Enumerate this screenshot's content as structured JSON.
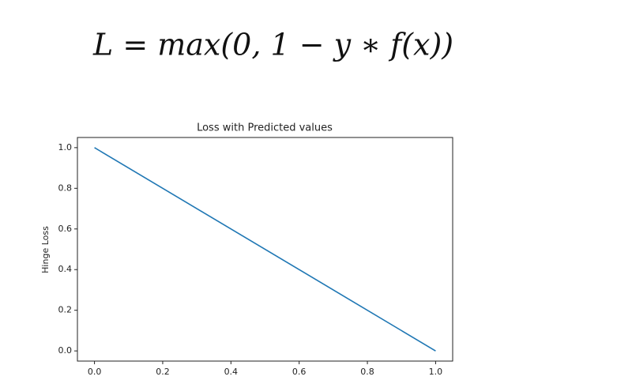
{
  "formula": "L = max(0, 1 − y ∗ f(x))",
  "chart_data": {
    "type": "line",
    "title": "Loss with Predicted values",
    "y_label": "Hinge Loss",
    "x": [
      0,
      1
    ],
    "series": [
      {
        "name": "Hinge Loss",
        "color": "#1f77b4",
        "values": [
          1,
          0
        ]
      }
    ],
    "xlim": [
      -0.05,
      1.05
    ],
    "ylim": [
      -0.05,
      1.05
    ],
    "xticks": [
      {
        "value": 0,
        "label": "0.0"
      },
      {
        "value": 0.2,
        "label": "0.2"
      },
      {
        "value": 0.4,
        "label": "0.4"
      },
      {
        "value": 0.6,
        "label": "0.6"
      },
      {
        "value": 0.8,
        "label": "0.8"
      },
      {
        "value": 1,
        "label": "1.0"
      }
    ],
    "yticks": [
      {
        "value": 0,
        "label": "0.0"
      },
      {
        "value": 0.2,
        "label": "0.2"
      },
      {
        "value": 0.4,
        "label": "0.4"
      },
      {
        "value": 0.6,
        "label": "0.6"
      },
      {
        "value": 0.8,
        "label": "0.8"
      },
      {
        "value": 1,
        "label": "1.0"
      }
    ],
    "grid": false
  }
}
